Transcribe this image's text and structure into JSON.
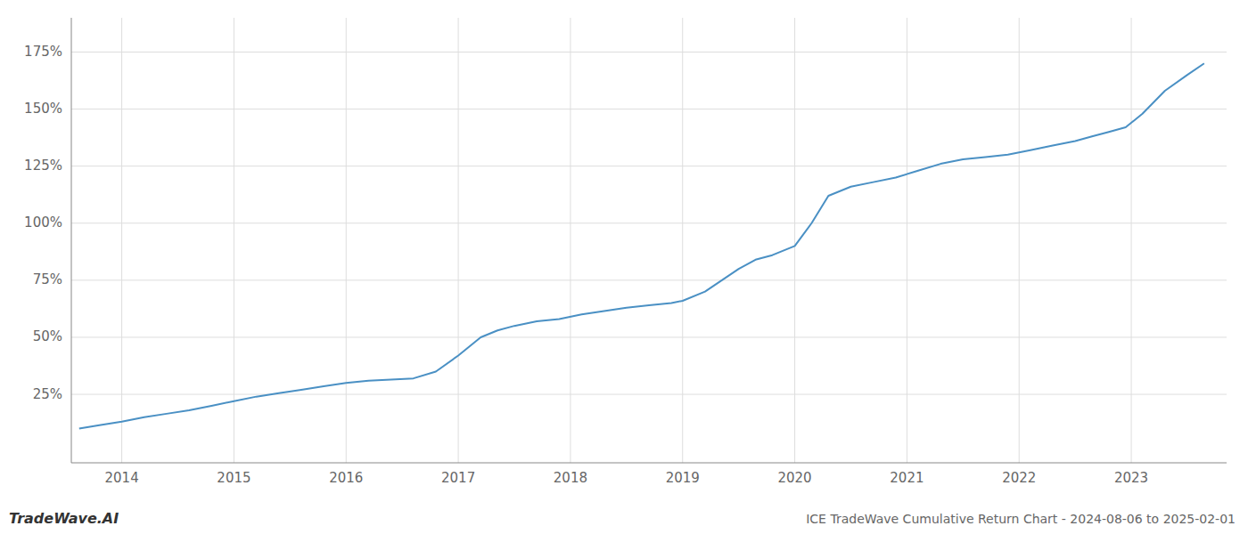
{
  "chart_data": {
    "type": "line",
    "title": "ICE TradeWave Cumulative Return Chart - 2024-08-06 to 2025-02-01",
    "annotations": [
      "TradeWave.AI"
    ],
    "color": "#4a90c4",
    "grid": true,
    "x": [
      2013.62,
      2013.8,
      2014.0,
      2014.2,
      2014.4,
      2014.6,
      2014.8,
      2015.0,
      2015.2,
      2015.4,
      2015.6,
      2015.8,
      2016.0,
      2016.2,
      2016.4,
      2016.6,
      2016.8,
      2017.0,
      2017.2,
      2017.35,
      2017.5,
      2017.7,
      2017.9,
      2018.1,
      2018.3,
      2018.5,
      2018.7,
      2018.9,
      2019.0,
      2019.2,
      2019.35,
      2019.5,
      2019.65,
      2019.8,
      2020.0,
      2020.15,
      2020.3,
      2020.5,
      2020.7,
      2020.9,
      2021.1,
      2021.3,
      2021.5,
      2021.7,
      2021.9,
      2022.1,
      2022.3,
      2022.5,
      2022.65,
      2022.8,
      2022.95,
      2023.1,
      2023.3,
      2023.5,
      2023.65
    ],
    "values": [
      10,
      11.5,
      13,
      15,
      16.5,
      18,
      20,
      22,
      24,
      25.5,
      27,
      28.5,
      30,
      31,
      31.5,
      32,
      35,
      42,
      50,
      53,
      55,
      57,
      58,
      60,
      61.5,
      63,
      64,
      65,
      66,
      70,
      75,
      80,
      84,
      86,
      90,
      100,
      112,
      116,
      118,
      120,
      123,
      126,
      128,
      129,
      130,
      132,
      134,
      136,
      138,
      140,
      142,
      148,
      158,
      165,
      170
    ],
    "xlim": [
      2013.55,
      2023.85
    ],
    "xticks": [
      2014,
      2015,
      2016,
      2017,
      2018,
      2019,
      2020,
      2021,
      2022,
      2023
    ],
    "ylim": [
      -5,
      190
    ],
    "yticks": [
      {
        "value": 25,
        "label": "25%"
      },
      {
        "value": 50,
        "label": "50%"
      },
      {
        "value": 75,
        "label": "75%"
      },
      {
        "value": 100,
        "label": "100%"
      },
      {
        "value": 125,
        "label": "125%"
      },
      {
        "value": 150,
        "label": "150%"
      },
      {
        "value": 175,
        "label": "175%"
      }
    ]
  }
}
